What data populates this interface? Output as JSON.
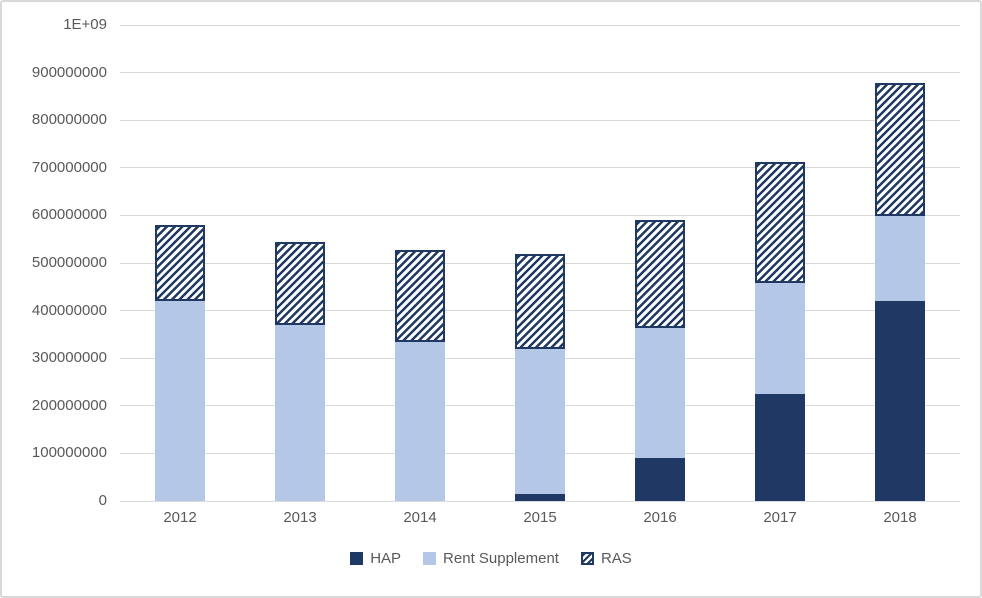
{
  "chart_data": {
    "type": "bar",
    "stacked": true,
    "title": "",
    "xlabel": "",
    "ylabel": "",
    "categories": [
      "2012",
      "2013",
      "2014",
      "2015",
      "2016",
      "2017",
      "2018"
    ],
    "series": [
      {
        "name": "HAP",
        "color": "#1f3864",
        "pattern": "solid",
        "values": [
          0,
          0,
          0,
          15000000,
          90000000,
          225000000,
          420000000
        ]
      },
      {
        "name": "Rent Supplement",
        "color": "#b4c7e7",
        "pattern": "solid",
        "values": [
          420000000,
          370000000,
          335000000,
          305000000,
          273000000,
          232000000,
          178000000
        ]
      },
      {
        "name": "RAS",
        "color": "#1f3864",
        "pattern": "diagonal-hatch",
        "values": [
          160000000,
          175000000,
          193000000,
          200000000,
          227000000,
          255000000,
          280000000
        ]
      }
    ],
    "totals": [
      580000000,
      545000000,
      528000000,
      520000000,
      590000000,
      712000000,
      878000000
    ],
    "ylim": [
      0,
      1000000000
    ],
    "ytick_interval": 100000000,
    "ytick_labels": [
      "0",
      "100000000",
      "200000000",
      "300000000",
      "400000000",
      "500000000",
      "600000000",
      "700000000",
      "800000000",
      "900000000",
      "1E+09"
    ],
    "grid": true,
    "legend_position": "bottom",
    "legend": [
      "HAP",
      "Rent Supplement",
      "RAS"
    ]
  },
  "colors": {
    "hap": "#1f3864",
    "rent_supplement": "#b4c7e7",
    "ras_hatch": "#1f3864",
    "gridline": "#d9d9d9",
    "axis_text": "#595959",
    "frame_border": "#d9d9d9",
    "background": "#ffffff"
  }
}
